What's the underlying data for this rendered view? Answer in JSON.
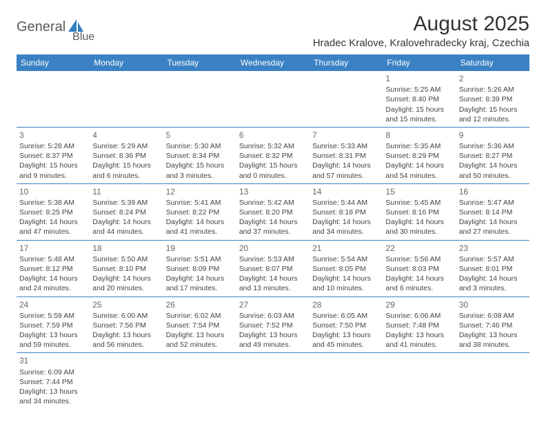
{
  "logo": {
    "text_left": "General",
    "text_right": "Blue",
    "icon_color": "#2f7fc2",
    "text_color": "#5a5a5a"
  },
  "header": {
    "title": "August 2025",
    "location": "Hradec Kralove, Kralovehradecky kraj, Czechia"
  },
  "colors": {
    "header_bg": "#3b82c4",
    "header_fg": "#ffffff",
    "row_border": "#3b82c4",
    "text": "#444444",
    "daynum": "#666666",
    "background": "#ffffff"
  },
  "weekdays": [
    "Sunday",
    "Monday",
    "Tuesday",
    "Wednesday",
    "Thursday",
    "Friday",
    "Saturday"
  ],
  "weeks": [
    [
      null,
      null,
      null,
      null,
      null,
      {
        "num": "1",
        "sunrise": "Sunrise: 5:25 AM",
        "sunset": "Sunset: 8:40 PM",
        "daylight": "Daylight: 15 hours and 15 minutes."
      },
      {
        "num": "2",
        "sunrise": "Sunrise: 5:26 AM",
        "sunset": "Sunset: 8:39 PM",
        "daylight": "Daylight: 15 hours and 12 minutes."
      }
    ],
    [
      {
        "num": "3",
        "sunrise": "Sunrise: 5:28 AM",
        "sunset": "Sunset: 8:37 PM",
        "daylight": "Daylight: 15 hours and 9 minutes."
      },
      {
        "num": "4",
        "sunrise": "Sunrise: 5:29 AM",
        "sunset": "Sunset: 8:36 PM",
        "daylight": "Daylight: 15 hours and 6 minutes."
      },
      {
        "num": "5",
        "sunrise": "Sunrise: 5:30 AM",
        "sunset": "Sunset: 8:34 PM",
        "daylight": "Daylight: 15 hours and 3 minutes."
      },
      {
        "num": "6",
        "sunrise": "Sunrise: 5:32 AM",
        "sunset": "Sunset: 8:32 PM",
        "daylight": "Daylight: 15 hours and 0 minutes."
      },
      {
        "num": "7",
        "sunrise": "Sunrise: 5:33 AM",
        "sunset": "Sunset: 8:31 PM",
        "daylight": "Daylight: 14 hours and 57 minutes."
      },
      {
        "num": "8",
        "sunrise": "Sunrise: 5:35 AM",
        "sunset": "Sunset: 8:29 PM",
        "daylight": "Daylight: 14 hours and 54 minutes."
      },
      {
        "num": "9",
        "sunrise": "Sunrise: 5:36 AM",
        "sunset": "Sunset: 8:27 PM",
        "daylight": "Daylight: 14 hours and 50 minutes."
      }
    ],
    [
      {
        "num": "10",
        "sunrise": "Sunrise: 5:38 AM",
        "sunset": "Sunset: 8:25 PM",
        "daylight": "Daylight: 14 hours and 47 minutes."
      },
      {
        "num": "11",
        "sunrise": "Sunrise: 5:39 AM",
        "sunset": "Sunset: 8:24 PM",
        "daylight": "Daylight: 14 hours and 44 minutes."
      },
      {
        "num": "12",
        "sunrise": "Sunrise: 5:41 AM",
        "sunset": "Sunset: 8:22 PM",
        "daylight": "Daylight: 14 hours and 41 minutes."
      },
      {
        "num": "13",
        "sunrise": "Sunrise: 5:42 AM",
        "sunset": "Sunset: 8:20 PM",
        "daylight": "Daylight: 14 hours and 37 minutes."
      },
      {
        "num": "14",
        "sunrise": "Sunrise: 5:44 AM",
        "sunset": "Sunset: 8:18 PM",
        "daylight": "Daylight: 14 hours and 34 minutes."
      },
      {
        "num": "15",
        "sunrise": "Sunrise: 5:45 AM",
        "sunset": "Sunset: 8:16 PM",
        "daylight": "Daylight: 14 hours and 30 minutes."
      },
      {
        "num": "16",
        "sunrise": "Sunrise: 5:47 AM",
        "sunset": "Sunset: 8:14 PM",
        "daylight": "Daylight: 14 hours and 27 minutes."
      }
    ],
    [
      {
        "num": "17",
        "sunrise": "Sunrise: 5:48 AM",
        "sunset": "Sunset: 8:12 PM",
        "daylight": "Daylight: 14 hours and 24 minutes."
      },
      {
        "num": "18",
        "sunrise": "Sunrise: 5:50 AM",
        "sunset": "Sunset: 8:10 PM",
        "daylight": "Daylight: 14 hours and 20 minutes."
      },
      {
        "num": "19",
        "sunrise": "Sunrise: 5:51 AM",
        "sunset": "Sunset: 8:09 PM",
        "daylight": "Daylight: 14 hours and 17 minutes."
      },
      {
        "num": "20",
        "sunrise": "Sunrise: 5:53 AM",
        "sunset": "Sunset: 8:07 PM",
        "daylight": "Daylight: 14 hours and 13 minutes."
      },
      {
        "num": "21",
        "sunrise": "Sunrise: 5:54 AM",
        "sunset": "Sunset: 8:05 PM",
        "daylight": "Daylight: 14 hours and 10 minutes."
      },
      {
        "num": "22",
        "sunrise": "Sunrise: 5:56 AM",
        "sunset": "Sunset: 8:03 PM",
        "daylight": "Daylight: 14 hours and 6 minutes."
      },
      {
        "num": "23",
        "sunrise": "Sunrise: 5:57 AM",
        "sunset": "Sunset: 8:01 PM",
        "daylight": "Daylight: 14 hours and 3 minutes."
      }
    ],
    [
      {
        "num": "24",
        "sunrise": "Sunrise: 5:59 AM",
        "sunset": "Sunset: 7:59 PM",
        "daylight": "Daylight: 13 hours and 59 minutes."
      },
      {
        "num": "25",
        "sunrise": "Sunrise: 6:00 AM",
        "sunset": "Sunset: 7:56 PM",
        "daylight": "Daylight: 13 hours and 56 minutes."
      },
      {
        "num": "26",
        "sunrise": "Sunrise: 6:02 AM",
        "sunset": "Sunset: 7:54 PM",
        "daylight": "Daylight: 13 hours and 52 minutes."
      },
      {
        "num": "27",
        "sunrise": "Sunrise: 6:03 AM",
        "sunset": "Sunset: 7:52 PM",
        "daylight": "Daylight: 13 hours and 49 minutes."
      },
      {
        "num": "28",
        "sunrise": "Sunrise: 6:05 AM",
        "sunset": "Sunset: 7:50 PM",
        "daylight": "Daylight: 13 hours and 45 minutes."
      },
      {
        "num": "29",
        "sunrise": "Sunrise: 6:06 AM",
        "sunset": "Sunset: 7:48 PM",
        "daylight": "Daylight: 13 hours and 41 minutes."
      },
      {
        "num": "30",
        "sunrise": "Sunrise: 6:08 AM",
        "sunset": "Sunset: 7:46 PM",
        "daylight": "Daylight: 13 hours and 38 minutes."
      }
    ],
    [
      {
        "num": "31",
        "sunrise": "Sunrise: 6:09 AM",
        "sunset": "Sunset: 7:44 PM",
        "daylight": "Daylight: 13 hours and 34 minutes."
      },
      null,
      null,
      null,
      null,
      null,
      null
    ]
  ]
}
